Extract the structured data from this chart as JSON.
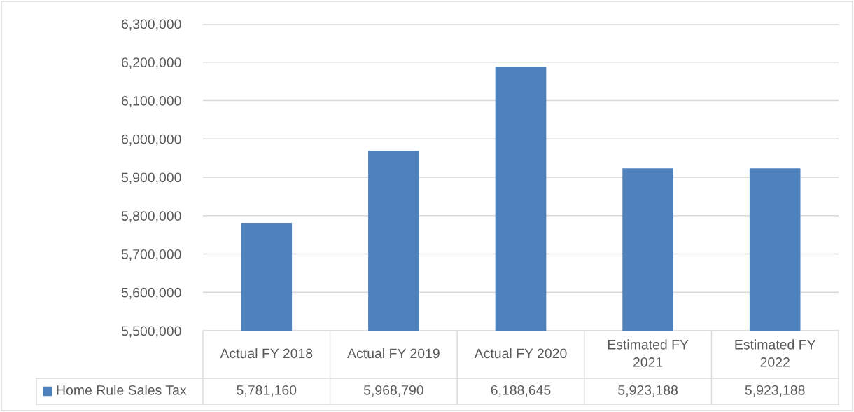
{
  "chart_data": {
    "type": "bar",
    "categories": [
      "Actual FY 2018",
      "Actual FY 2019",
      "Actual FY 2020",
      "Estimated FY 2021",
      "Estimated FY 2022"
    ],
    "series": [
      {
        "name": "Home Rule Sales Tax",
        "color": "#4f81bd",
        "values": [
          5781160,
          5968790,
          6188645,
          5923188,
          5923188
        ],
        "value_labels": [
          "5,781,160",
          "5,968,790",
          "6,188,645",
          "5,923,188",
          "5,923,188"
        ]
      }
    ],
    "ylim": [
      5500000,
      6300000
    ],
    "yticks": [
      {
        "value": 5500000,
        "label": "5,500,000"
      },
      {
        "value": 5600000,
        "label": "5,600,000"
      },
      {
        "value": 5700000,
        "label": "5,700,000"
      },
      {
        "value": 5800000,
        "label": "5,800,000"
      },
      {
        "value": 5900000,
        "label": "5,900,000"
      },
      {
        "value": 6000000,
        "label": "6,000,000"
      },
      {
        "value": 6100000,
        "label": "6,100,000"
      },
      {
        "value": 6200000,
        "label": "6,200,000"
      },
      {
        "value": 6300000,
        "label": "6,300,000"
      }
    ],
    "grid": "y",
    "legend": "bottom left"
  }
}
